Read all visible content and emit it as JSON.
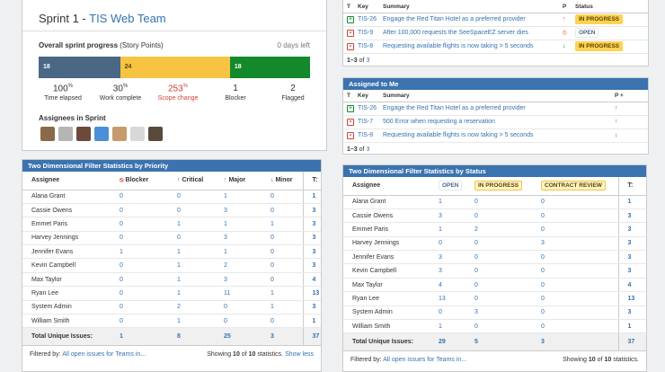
{
  "sprint": {
    "title": "Sprint 1 - ",
    "team": "TIS Web Team",
    "progress_label": "Overall sprint progress",
    "progress_unit": "(Story Points)",
    "days_left": "0 days left",
    "bar": [
      {
        "value": "18",
        "fraction": 0.3
      },
      {
        "value": "24",
        "fraction": 0.405
      },
      {
        "value": "18",
        "fraction": 0.295
      }
    ],
    "stats": [
      {
        "value": "100",
        "sup": "%",
        "label": "Time elapsed"
      },
      {
        "value": "30",
        "sup": "%",
        "label": "Work complete"
      },
      {
        "value": "253",
        "sup": "%",
        "label": "Scope change"
      },
      {
        "value": "1",
        "sup": "",
        "label": "Blocker"
      },
      {
        "value": "2",
        "sup": "",
        "label": "Flagged"
      }
    ],
    "assignees_label": "Assignees in Sprint",
    "avatar_colors": [
      "#8a6a4a",
      "#b5b5b5",
      "#6b4a3a",
      "#4a90d9",
      "#c79a6e",
      "#d8d8d8",
      "#5a4a3a"
    ]
  },
  "priority_stats": {
    "title": "Two Dimensional Filter Statistics by Priority",
    "headers": [
      "Assignee",
      "Blocker",
      "Critical",
      "Major",
      "Minor",
      "T:"
    ],
    "rows": [
      [
        "Alana Grant",
        "0",
        "0",
        "1",
        "0",
        "1"
      ],
      [
        "Cassie Owens",
        "0",
        "0",
        "3",
        "0",
        "3"
      ],
      [
        "Emmet Paris",
        "0",
        "1",
        "1",
        "1",
        "3"
      ],
      [
        "Harvey Jennings",
        "0",
        "0",
        "3",
        "0",
        "3"
      ],
      [
        "Jennifer Evans",
        "1",
        "1",
        "1",
        "0",
        "3"
      ],
      [
        "Kevin Campbell",
        "0",
        "1",
        "2",
        "0",
        "3"
      ],
      [
        "Max Taylor",
        "0",
        "1",
        "3",
        "0",
        "4"
      ],
      [
        "Ryan Lee",
        "0",
        "1",
        "11",
        "1",
        "13"
      ],
      [
        "System Admin",
        "0",
        "2",
        "0",
        "1",
        "3"
      ],
      [
        "William Smith",
        "0",
        "1",
        "0",
        "0",
        "1"
      ]
    ],
    "total": [
      "Total Unique Issues:",
      "1",
      "8",
      "25",
      "3",
      "37"
    ],
    "filtered_by": "Filtered by:",
    "filter_link": "All open issues for Teams in...",
    "showing_pre": "Showing",
    "showing_a": "10",
    "showing_of": "of",
    "showing_b": "10",
    "showing_post": "statistics.",
    "show_less": "Show less"
  },
  "status_stats": {
    "title": "Two Dimensional Filter Statistics by Status",
    "headers": [
      "Assignee",
      "OPEN",
      "IN PROGRESS",
      "CONTRACT REVIEW",
      "T:"
    ],
    "rows": [
      [
        "Alana Grant",
        "1",
        "0",
        "0",
        "1"
      ],
      [
        "Cassie Owens",
        "3",
        "0",
        "0",
        "3"
      ],
      [
        "Emmet Paris",
        "1",
        "2",
        "0",
        "3"
      ],
      [
        "Harvey Jennings",
        "0",
        "0",
        "3",
        "3"
      ],
      [
        "Jennifer Evans",
        "3",
        "0",
        "0",
        "3"
      ],
      [
        "Kevin Campbell",
        "3",
        "0",
        "0",
        "3"
      ],
      [
        "Max Taylor",
        "4",
        "0",
        "0",
        "4"
      ],
      [
        "Ryan Lee",
        "13",
        "0",
        "0",
        "13"
      ],
      [
        "System Admin",
        "0",
        "3",
        "0",
        "3"
      ],
      [
        "William Smith",
        "1",
        "0",
        "0",
        "1"
      ]
    ],
    "total": [
      "Total Unique Issues:",
      "29",
      "5",
      "3",
      "37"
    ],
    "filtered_by": "Filtered by:",
    "filter_link": "All open issues for Teams in...",
    "showing_pre": "Showing",
    "showing_a": "10",
    "showing_of": "of",
    "showing_b": "10",
    "showing_post": "statistics."
  },
  "top_issues": {
    "headers": [
      "T",
      "Key",
      "Summary",
      "P",
      "Status"
    ],
    "rows": [
      {
        "type": "task",
        "key": "TIS-26",
        "summary": "Engage the Red Titan Hotel as a preferred provider",
        "priority": "↑",
        "status": "IN PROGRESS"
      },
      {
        "type": "bug",
        "key": "TIS-9",
        "summary": "After 100,000 requests the SeeSpaceEZ server dies",
        "priority": "⦸",
        "status": "OPEN"
      },
      {
        "type": "bug",
        "key": "TIS-8",
        "summary": "Requesting available flights is now taking > 5 seconds",
        "priority": "↓",
        "status": "IN PROGRESS"
      }
    ],
    "count_pre": "1–3",
    "count_of": "of",
    "count_total": "3"
  },
  "assigned": {
    "title": "Assigned to Me",
    "headers": [
      "T",
      "Key",
      "Summary",
      "P"
    ],
    "rows": [
      {
        "type": "task",
        "key": "TIS-26",
        "summary": "Engage the Red Titan Hotel as a preferred provider",
        "priority": "↑"
      },
      {
        "type": "bug",
        "key": "TIS-7",
        "summary": "500 Error when requesting a reservation",
        "priority": "↑"
      },
      {
        "type": "bug",
        "key": "TIS-8",
        "summary": "Requesting available flights is now taking > 5 seconds",
        "priority": "↓"
      }
    ],
    "count_pre": "1–3",
    "count_of": "of",
    "count_total": "3"
  }
}
